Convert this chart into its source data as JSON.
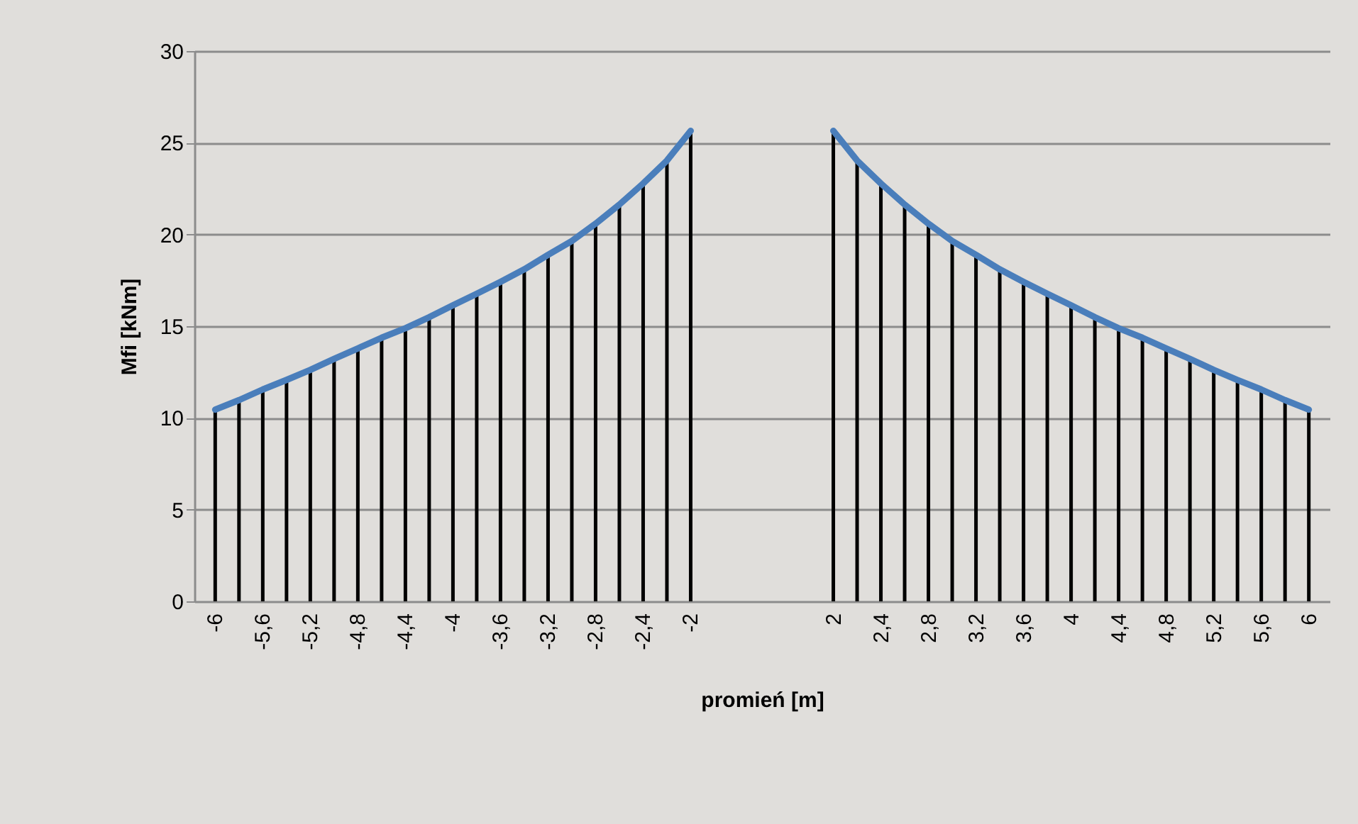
{
  "chart_data": {
    "type": "line",
    "xlabel": "promień [m]",
    "ylabel": "Mfi [kNm]",
    "categories": [
      "-6",
      null,
      "-5,6",
      null,
      "-5,2",
      null,
      "-4,8",
      null,
      "-4,4",
      null,
      "-4",
      null,
      "-3,6",
      null,
      "-3,2",
      null,
      "-2,8",
      null,
      "-2,4",
      null,
      "-2",
      null,
      null,
      null,
      null,
      null,
      "2",
      null,
      "2,4",
      null,
      "2,8",
      null,
      "3,2",
      null,
      "3,6",
      null,
      "4",
      null,
      "4,4",
      null,
      "4,8",
      null,
      "5,2",
      null,
      "5,6",
      null,
      "6"
    ],
    "series": [
      {
        "type": "bar",
        "color": "#000000",
        "values": [
          10.45,
          10.97,
          11.55,
          12.07,
          12.62,
          13.22,
          13.79,
          14.37,
          14.89,
          15.49,
          16.14,
          16.77,
          17.42,
          18.1,
          18.89,
          19.64,
          20.59,
          21.63,
          22.78,
          24.03,
          25.65,
          null,
          null,
          null,
          null,
          null,
          25.65,
          24.03,
          22.78,
          21.63,
          20.59,
          19.64,
          18.89,
          18.1,
          17.42,
          16.77,
          16.14,
          15.49,
          14.89,
          14.37,
          13.79,
          13.22,
          12.62,
          12.07,
          11.55,
          10.97,
          10.45
        ]
      },
      {
        "color": "#4a7ebb",
        "values": [
          10.45,
          10.97,
          11.55,
          12.07,
          12.62,
          13.22,
          13.79,
          14.37,
          14.89,
          15.49,
          16.14,
          16.77,
          17.42,
          18.1,
          18.89,
          19.64,
          20.59,
          21.63,
          22.78,
          24.03,
          25.65,
          null,
          null,
          null,
          null,
          null,
          25.65,
          24.03,
          22.78,
          21.63,
          20.59,
          19.64,
          18.89,
          18.1,
          17.42,
          16.77,
          16.14,
          15.49,
          14.89,
          14.37,
          13.79,
          13.22,
          12.62,
          12.07,
          11.55,
          10.97,
          10.45
        ]
      }
    ],
    "ylim": [
      0,
      30
    ],
    "yticks": [
      0,
      5,
      10,
      15,
      20,
      25,
      30
    ],
    "grid": "y",
    "legend": false,
    "marker": "none",
    "line_style": "solid"
  }
}
